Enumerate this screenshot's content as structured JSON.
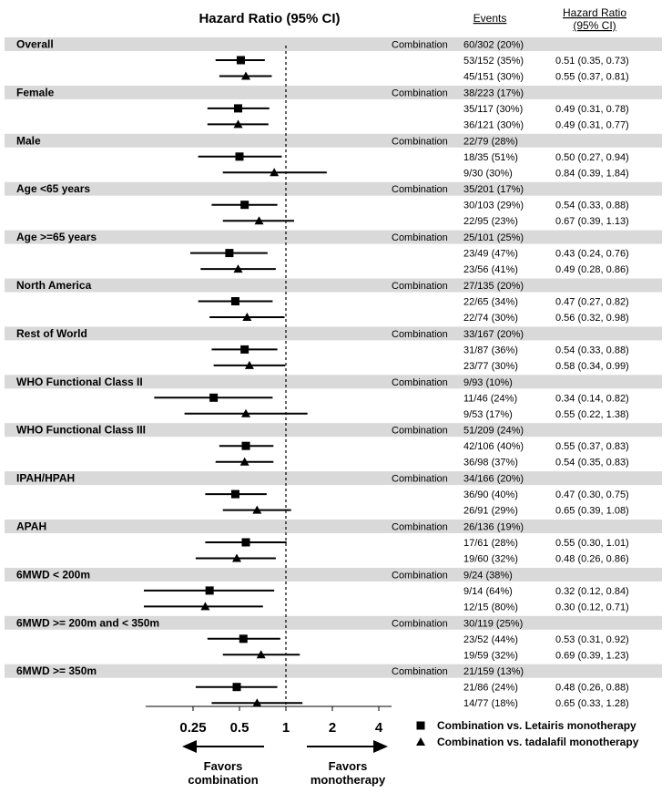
{
  "header": {
    "title": "Hazard Ratio (95% CI)",
    "events_label": "Events",
    "hr_label_line1": "Hazard Ratio",
    "hr_label_line2": "(95% CI)"
  },
  "colors": {
    "band": "#d9d9d9",
    "mark": "#000000"
  },
  "chart_data": {
    "type": "forest",
    "x_scale": "log2",
    "xlim": [
      0.13,
      4.8
    ],
    "x_ticks": [
      0.25,
      0.5,
      1,
      2,
      4
    ],
    "x_tick_labels": [
      "0.25",
      "0.5",
      "1",
      "2",
      "4"
    ],
    "reference_line": 1,
    "favors_left": [
      "Favors",
      "combination"
    ],
    "favors_right": [
      "Favors",
      "monotherapy"
    ],
    "legend": [
      {
        "marker": "square",
        "label": "Combination vs. Letairis monotherapy"
      },
      {
        "marker": "triangle",
        "label": "Combination vs. tadalafil monotherapy"
      }
    ],
    "subgroups": [
      {
        "name": "Overall",
        "combo_label": "Combination",
        "combo_events": "60/302 (20%)",
        "rows": [
          {
            "marker": "square",
            "events": "53/152 (35%)",
            "hr_text": "0.51  (0.35, 0.73)",
            "hr": 0.51,
            "lo": 0.35,
            "hi": 0.73
          },
          {
            "marker": "triangle",
            "events": "45/151 (30%)",
            "hr_text": "0.55  (0.37, 0.81)",
            "hr": 0.55,
            "lo": 0.37,
            "hi": 0.81
          }
        ]
      },
      {
        "name": "Female",
        "combo_label": "Combination",
        "combo_events": "38/223 (17%)",
        "rows": [
          {
            "marker": "square",
            "events": "35/117 (30%)",
            "hr_text": "0.49  (0.31, 0.78)",
            "hr": 0.49,
            "lo": 0.31,
            "hi": 0.78
          },
          {
            "marker": "triangle",
            "events": "36/121 (30%)",
            "hr_text": "0.49  (0.31, 0.77)",
            "hr": 0.49,
            "lo": 0.31,
            "hi": 0.77
          }
        ]
      },
      {
        "name": "Male",
        "combo_label": "Combination",
        "combo_events": "22/79 (28%)",
        "rows": [
          {
            "marker": "square",
            "events": "18/35 (51%)",
            "hr_text": "0.50  (0.27, 0.94)",
            "hr": 0.5,
            "lo": 0.27,
            "hi": 0.94
          },
          {
            "marker": "triangle",
            "events": "9/30 (30%)",
            "hr_text": "0.84  (0.39, 1.84)",
            "hr": 0.84,
            "lo": 0.39,
            "hi": 1.84
          }
        ]
      },
      {
        "name": "Age <65 years",
        "combo_label": "Combination",
        "combo_events": "35/201 (17%)",
        "rows": [
          {
            "marker": "square",
            "events": "30/103 (29%)",
            "hr_text": "0.54  (0.33, 0.88)",
            "hr": 0.54,
            "lo": 0.33,
            "hi": 0.88
          },
          {
            "marker": "triangle",
            "events": "22/95 (23%)",
            "hr_text": "0.67  (0.39, 1.13)",
            "hr": 0.67,
            "lo": 0.39,
            "hi": 1.13
          }
        ]
      },
      {
        "name": "Age >=65 years",
        "combo_label": "Combination",
        "combo_events": "25/101 (25%)",
        "rows": [
          {
            "marker": "square",
            "events": "23/49 (47%)",
            "hr_text": "0.43  (0.24, 0.76)",
            "hr": 0.43,
            "lo": 0.24,
            "hi": 0.76
          },
          {
            "marker": "triangle",
            "events": "23/56 (41%)",
            "hr_text": "0.49  (0.28, 0.86)",
            "hr": 0.49,
            "lo": 0.28,
            "hi": 0.86
          }
        ]
      },
      {
        "name": "North America",
        "combo_label": "Combination",
        "combo_events": "27/135 (20%)",
        "rows": [
          {
            "marker": "square",
            "events": "22/65 (34%)",
            "hr_text": "0.47  (0.27, 0.82)",
            "hr": 0.47,
            "lo": 0.27,
            "hi": 0.82
          },
          {
            "marker": "triangle",
            "events": "22/74 (30%)",
            "hr_text": "0.56  (0.32, 0.98)",
            "hr": 0.56,
            "lo": 0.32,
            "hi": 0.98
          }
        ]
      },
      {
        "name": "Rest of World",
        "combo_label": "Combination",
        "combo_events": "33/167 (20%)",
        "rows": [
          {
            "marker": "square",
            "events": "31/87 (36%)",
            "hr_text": "0.54  (0.33, 0.88)",
            "hr": 0.54,
            "lo": 0.33,
            "hi": 0.88
          },
          {
            "marker": "triangle",
            "events": "23/77 (30%)",
            "hr_text": "0.58  (0.34, 0.99)",
            "hr": 0.58,
            "lo": 0.34,
            "hi": 0.99
          }
        ]
      },
      {
        "name": "WHO Functional Class II",
        "combo_label": "Combination",
        "combo_events": "9/93 (10%)",
        "rows": [
          {
            "marker": "square",
            "events": "11/46 (24%)",
            "hr_text": "0.34  (0.14, 0.82)",
            "hr": 0.34,
            "lo": 0.14,
            "hi": 0.82
          },
          {
            "marker": "triangle",
            "events": "9/53 (17%)",
            "hr_text": "0.55  (0.22, 1.38)",
            "hr": 0.55,
            "lo": 0.22,
            "hi": 1.38
          }
        ]
      },
      {
        "name": "WHO Functional Class III",
        "combo_label": "Combination",
        "combo_events": "51/209 (24%)",
        "rows": [
          {
            "marker": "square",
            "events": "42/106 (40%)",
            "hr_text": "0.55  (0.37, 0.83)",
            "hr": 0.55,
            "lo": 0.37,
            "hi": 0.83
          },
          {
            "marker": "triangle",
            "events": "36/98 (37%)",
            "hr_text": "0.54  (0.35, 0.83)",
            "hr": 0.54,
            "lo": 0.35,
            "hi": 0.83
          }
        ]
      },
      {
        "name": "IPAH/HPAH",
        "combo_label": "Combination",
        "combo_events": "34/166 (20%)",
        "rows": [
          {
            "marker": "square",
            "events": "36/90 (40%)",
            "hr_text": "0.47  (0.30, 0.75)",
            "hr": 0.47,
            "lo": 0.3,
            "hi": 0.75
          },
          {
            "marker": "triangle",
            "events": "26/91 (29%)",
            "hr_text": "0.65  (0.39, 1.08)",
            "hr": 0.65,
            "lo": 0.39,
            "hi": 1.08
          }
        ]
      },
      {
        "name": "APAH",
        "combo_label": "Combination",
        "combo_events": "26/136 (19%)",
        "rows": [
          {
            "marker": "square",
            "events": "17/61 (28%)",
            "hr_text": "0.55  (0.30, 1.01)",
            "hr": 0.55,
            "lo": 0.3,
            "hi": 1.01
          },
          {
            "marker": "triangle",
            "events": "19/60 (32%)",
            "hr_text": "0.48  (0.26, 0.86)",
            "hr": 0.48,
            "lo": 0.26,
            "hi": 0.86
          }
        ]
      },
      {
        "name": "6MWD < 200m",
        "combo_label": "Combination",
        "combo_events": "9/24 (38%)",
        "rows": [
          {
            "marker": "square",
            "events": "9/14 (64%)",
            "hr_text": "0.32  (0.12, 0.84)",
            "hr": 0.32,
            "lo": 0.12,
            "hi": 0.84
          },
          {
            "marker": "triangle",
            "events": "12/15 (80%)",
            "hr_text": "0.30  (0.12, 0.71)",
            "hr": 0.3,
            "lo": 0.12,
            "hi": 0.71
          }
        ]
      },
      {
        "name": "6MWD >= 200m and < 350m",
        "combo_label": "Combination",
        "combo_events": "30/119 (25%)",
        "rows": [
          {
            "marker": "square",
            "events": "23/52 (44%)",
            "hr_text": "0.53  (0.31, 0.92)",
            "hr": 0.53,
            "lo": 0.31,
            "hi": 0.92
          },
          {
            "marker": "triangle",
            "events": "19/59 (32%)",
            "hr_text": "0.69  (0.39, 1.23)",
            "hr": 0.69,
            "lo": 0.39,
            "hi": 1.23
          }
        ]
      },
      {
        "name": "6MWD >= 350m",
        "combo_label": "Combination",
        "combo_events": "21/159 (13%)",
        "rows": [
          {
            "marker": "square",
            "events": "21/86 (24%)",
            "hr_text": "0.48  (0.26, 0.88)",
            "hr": 0.48,
            "lo": 0.26,
            "hi": 0.88
          },
          {
            "marker": "triangle",
            "events": "14/77 (18%)",
            "hr_text": "0.65  (0.33, 1.28)",
            "hr": 0.65,
            "lo": 0.33,
            "hi": 1.28
          }
        ]
      }
    ]
  }
}
